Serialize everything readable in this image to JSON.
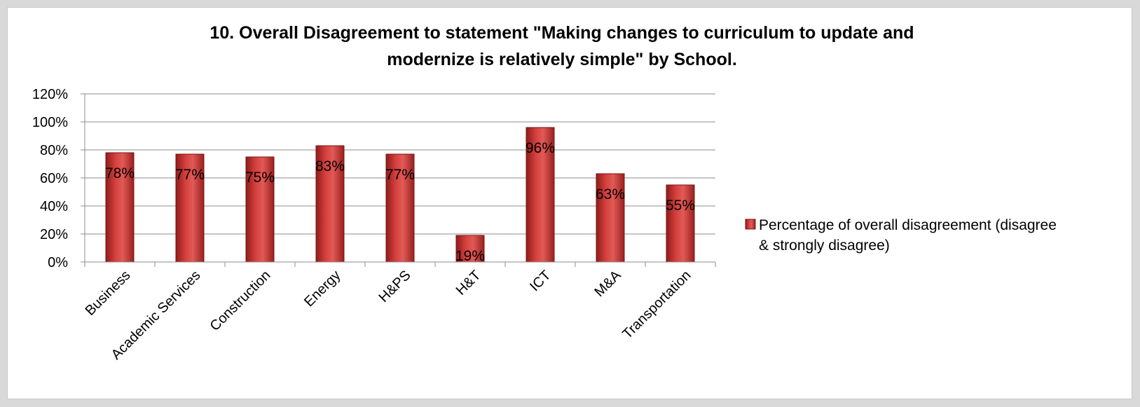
{
  "chart_data": {
    "type": "bar",
    "title_lines": [
      "10.  Overall Disagreement to statement \"Making changes to curriculum to update and",
      "modernize is relatively simple\" by School."
    ],
    "categories": [
      "Business",
      "Academic Services",
      "Construction",
      "Energy",
      "H&PS",
      "H&T",
      "ICT",
      "M&A",
      "Transportation"
    ],
    "series": [
      {
        "name": "Percentage of overall disagreement (disagree & strongly disagree)",
        "legend_lines": [
          "Percentage of overall disagreement (disagree",
          "& strongly disagree)"
        ],
        "values": [
          78,
          77,
          75,
          83,
          77,
          19,
          96,
          63,
          55
        ],
        "data_labels": [
          "78%",
          "77%",
          "75%",
          "83%",
          "77%",
          "19%",
          "96%",
          "63%",
          "55%"
        ],
        "color": "#c0302e"
      }
    ],
    "y_ticks": [
      "0%",
      "20%",
      "40%",
      "60%",
      "80%",
      "100%",
      "120%"
    ],
    "ylim": [
      0,
      120
    ],
    "grid": true,
    "legend_position": "right",
    "xlabel": "",
    "ylabel": ""
  }
}
